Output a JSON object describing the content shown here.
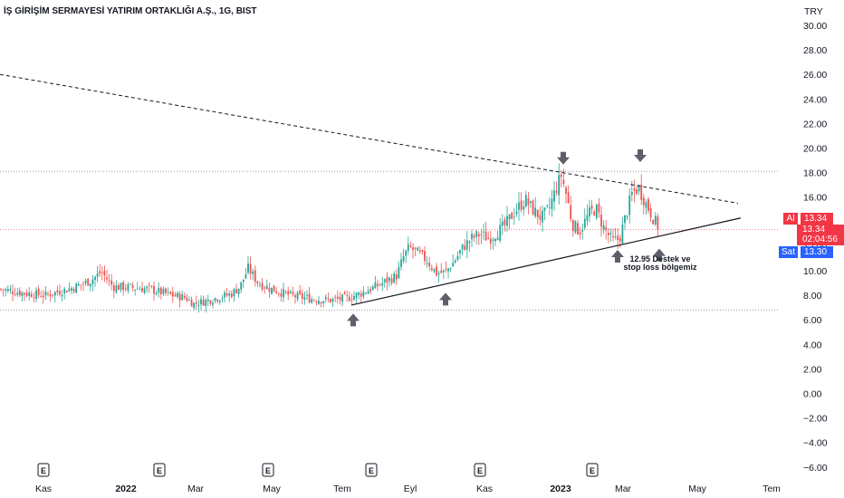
{
  "header": {
    "title": "İŞ GİRİŞİM SERMAYESİ YATIRIM ORTAKLIĞI A.Ş., 1G, BIST"
  },
  "price_axis": {
    "currency": "TRY"
  },
  "price_tags": {
    "ask_label": "Al",
    "ask_value": "13.34",
    "last_value": "13.34",
    "countdown": "02:04:56",
    "bid_label": "Sat",
    "bid_value": "13.30"
  },
  "annotation": {
    "line1": "12.95 Destek ve",
    "line2": "stop loss bölgemiz"
  },
  "earnings_marker": "E",
  "colors": {
    "up": "#26a69a",
    "down": "#ef5350",
    "ask": "#f23645",
    "bid": "#2962ff",
    "arrow": "#5d606b",
    "trend": "#131722"
  },
  "chart_data": {
    "type": "candlestick",
    "title": "İŞ GİRİŞİM SERMAYESİ YATIRIM ORTAKLIĞI A.Ş., 1G, BIST",
    "ylim": [
      -6.5,
      31
    ],
    "y_ticks": [
      "30.00",
      "28.00",
      "26.00",
      "24.00",
      "22.00",
      "20.00",
      "18.00",
      "16.00",
      "14.00",
      "12.00",
      "10.00",
      "8.00",
      "6.00",
      "4.00",
      "2.00",
      "0.00",
      "−2.00",
      "−4.00",
      "−6.00"
    ],
    "y_tick_values": [
      30,
      28,
      26,
      24,
      22,
      20,
      18,
      16,
      14,
      12,
      10,
      8,
      6,
      4,
      2,
      0,
      -2,
      -4,
      -6
    ],
    "x_ticks": [
      {
        "label": "Kas",
        "bold": false
      },
      {
        "label": "2022",
        "bold": true
      },
      {
        "label": "Mar",
        "bold": false
      },
      {
        "label": "May",
        "bold": false
      },
      {
        "label": "Tem",
        "bold": false
      },
      {
        "label": "Eyl",
        "bold": false
      },
      {
        "label": "Kas",
        "bold": false
      },
      {
        "label": "2023",
        "bold": true
      },
      {
        "label": "Mar",
        "bold": false
      },
      {
        "label": "May",
        "bold": false
      },
      {
        "label": "Tem",
        "bold": false
      }
    ],
    "x_tick_pos": [
      48,
      139,
      216,
      300,
      378,
      453,
      535,
      619,
      688,
      770,
      852
    ],
    "price_path": [
      [
        0,
        8.5
      ],
      [
        25,
        8.2
      ],
      [
        50,
        8.0
      ],
      [
        80,
        8.6
      ],
      [
        100,
        9.2
      ],
      [
        112,
        9.9
      ],
      [
        125,
        8.7
      ],
      [
        150,
        8.6
      ],
      [
        165,
        8.5
      ],
      [
        190,
        8.0
      ],
      [
        205,
        7.8
      ],
      [
        214,
        7.3
      ],
      [
        230,
        7.6
      ],
      [
        255,
        8.1
      ],
      [
        265,
        8.7
      ],
      [
        274,
        10.2
      ],
      [
        285,
        9.0
      ],
      [
        300,
        8.5
      ],
      [
        320,
        8.0
      ],
      [
        345,
        7.7
      ],
      [
        365,
        7.6
      ],
      [
        385,
        7.8
      ],
      [
        400,
        8.2
      ],
      [
        420,
        8.9
      ],
      [
        438,
        9.6
      ],
      [
        446,
        11.2
      ],
      [
        452,
        11.9
      ],
      [
        462,
        11.4
      ],
      [
        472,
        10.8
      ],
      [
        482,
        9.8
      ],
      [
        492,
        9.9
      ],
      [
        502,
        10.8
      ],
      [
        510,
        11.8
      ],
      [
        520,
        12.6
      ],
      [
        530,
        13.0
      ],
      [
        540,
        12.6
      ],
      [
        550,
        13.2
      ],
      [
        558,
        13.7
      ],
      [
        568,
        14.8
      ],
      [
        580,
        15.8
      ],
      [
        588,
        15.0
      ],
      [
        598,
        14.3
      ],
      [
        606,
        15.0
      ],
      [
        614,
        16.7
      ],
      [
        620,
        17.8
      ],
      [
        626,
        16.0
      ],
      [
        632,
        13.8
      ],
      [
        640,
        13.2
      ],
      [
        650,
        14.6
      ],
      [
        658,
        15.1
      ],
      [
        666,
        13.6
      ],
      [
        676,
        12.4
      ],
      [
        684,
        12.6
      ],
      [
        690,
        14.2
      ],
      [
        698,
        16.3
      ],
      [
        705,
        16.8
      ],
      [
        712,
        15.7
      ],
      [
        720,
        14.5
      ],
      [
        728,
        13.34
      ]
    ],
    "horizontal_levels": [
      18.1,
      6.8
    ],
    "resistance_line": {
      "from": [
        0,
        26.0
      ],
      "to": [
        815,
        15.5
      ]
    },
    "support_line": {
      "from": [
        388,
        7.2
      ],
      "to": [
        818,
        14.3
      ]
    },
    "ask": 13.34,
    "last": 13.34,
    "bid": 13.3,
    "earnings_x": [
      48,
      176,
      296,
      410,
      530,
      654
    ],
    "arrows_down": [
      [
        622,
        18.8
      ],
      [
        707,
        19.0
      ]
    ],
    "arrows_up": [
      [
        390,
        6.5
      ],
      [
        492,
        8.2
      ],
      [
        682,
        11.7
      ],
      [
        728,
        11.8
      ]
    ]
  }
}
